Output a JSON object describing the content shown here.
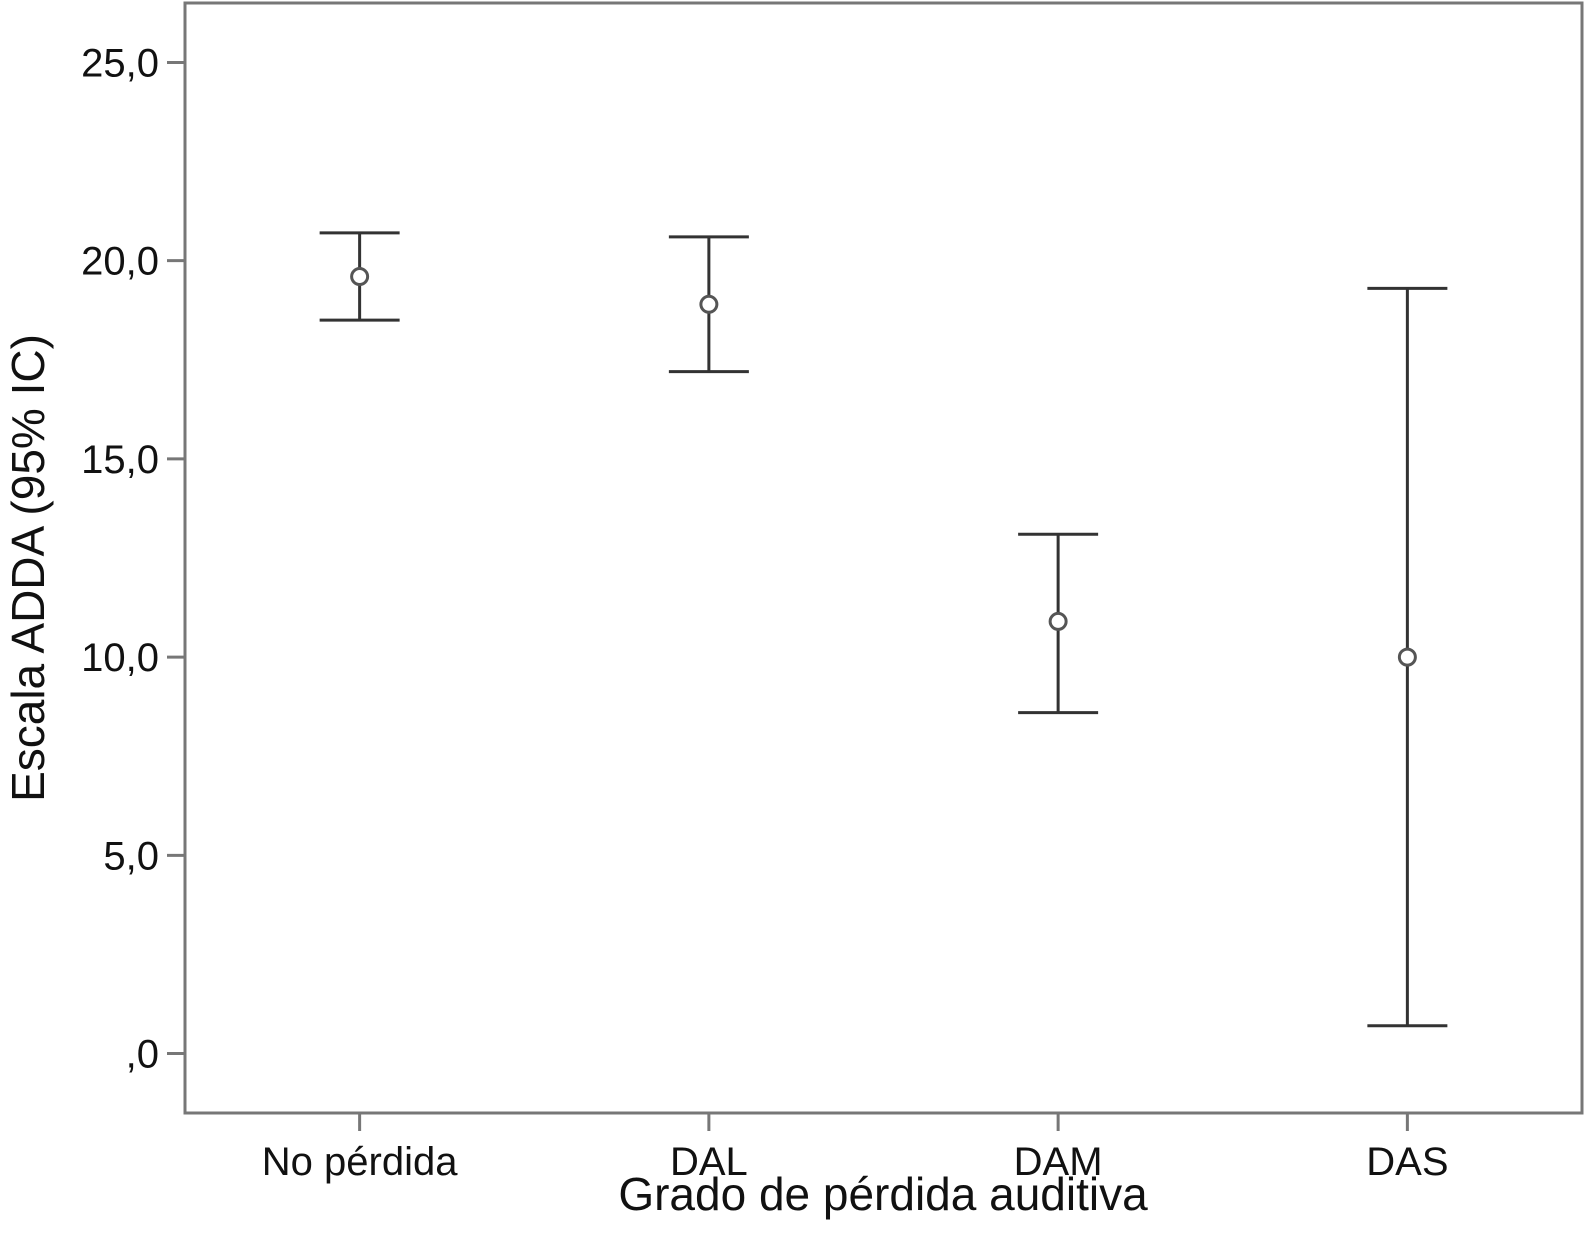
{
  "chart_data": {
    "type": "errorbar",
    "xlabel": "Grado de pérdida auditiva",
    "ylabel": "Escala ADDA (95% IC)",
    "ylim": [
      -1.5,
      26.5
    ],
    "yticks": [
      0,
      5,
      10,
      15,
      20,
      25
    ],
    "ytick_labels": [
      ",0",
      "5,0",
      "10,0",
      "15,0",
      "20,0",
      "25,0"
    ],
    "categories": [
      "No pérdida",
      "DAL",
      "DAM",
      "DAS"
    ],
    "mean": [
      19.6,
      18.9,
      10.9,
      10.0
    ],
    "ci_lower": [
      18.5,
      17.2,
      8.6,
      0.7
    ],
    "ci_upper": [
      20.7,
      20.6,
      13.1,
      19.3
    ],
    "grid": false,
    "legend": "none",
    "colors": {
      "frame": "#777777",
      "errorbar": "#333333",
      "marker": "#555555",
      "text": "#111111"
    }
  }
}
